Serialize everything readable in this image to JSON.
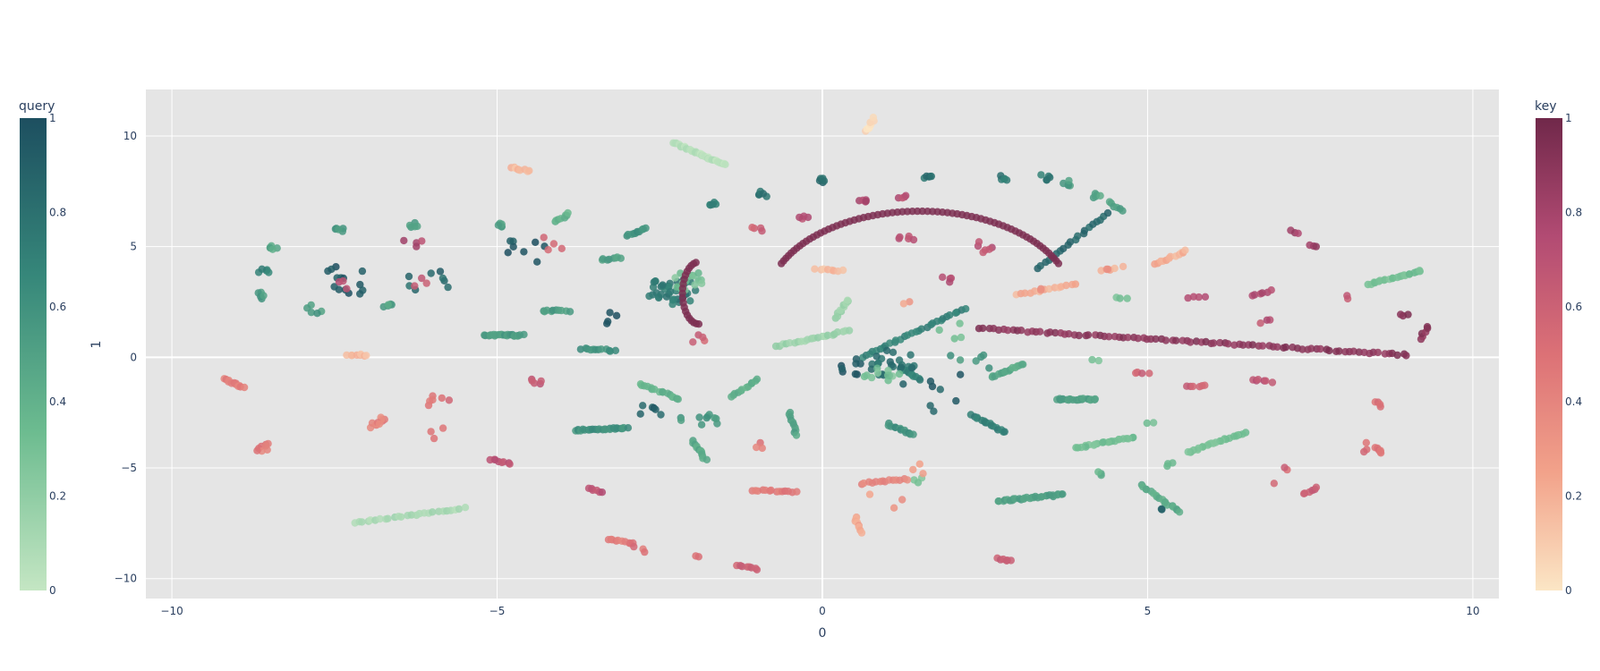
{
  "chart_data": {
    "type": "scatter",
    "title": "",
    "xlabel": "0",
    "ylabel": "1",
    "xlim": [
      -10.4,
      10.4
    ],
    "ylim": [
      -10.9,
      12.1
    ],
    "grid": true,
    "x_ticks": [
      -10,
      -5,
      0,
      5,
      10
    ],
    "y_ticks": [
      -10,
      -5,
      0,
      5,
      10
    ],
    "plot_bg": "#e5e5e5",
    "colorbars": [
      {
        "name": "query",
        "ticks": [
          "0",
          "0.2",
          "0.4",
          "0.6",
          "0.8",
          "1"
        ],
        "colors": [
          "#c4e6c3",
          "#6dbc90",
          "#36877a",
          "#1d4f60"
        ]
      },
      {
        "name": "key",
        "ticks": [
          "0",
          "0.2",
          "0.4",
          "0.6",
          "0.8",
          "1"
        ],
        "colors": [
          "#fbe6c5",
          "#f2a28a",
          "#dc7176",
          "#b24b73",
          "#70284a"
        ]
      }
    ],
    "series": [
      {
        "name": "query",
        "segments": [
          {
            "x0": -2.3,
            "y0": 9.7,
            "x1": -1.5,
            "y1": 8.7,
            "n": 30,
            "v": 0.05
          },
          {
            "x0": -7.2,
            "y0": -7.5,
            "x1": -5.5,
            "y1": -6.8,
            "n": 26,
            "v": 0.1
          },
          {
            "x0": -0.7,
            "y0": 0.5,
            "x1": 0.4,
            "y1": 1.2,
            "n": 22,
            "v": 0.15
          },
          {
            "x0": 0.2,
            "y0": 1.8,
            "x1": 0.4,
            "y1": 2.6,
            "n": 10,
            "v": 0.15
          },
          {
            "x0": 8.4,
            "y0": 3.3,
            "x1": 9.2,
            "y1": 3.9,
            "n": 22,
            "v": 0.3
          },
          {
            "x0": 6.5,
            "y0": -3.4,
            "x1": 5.6,
            "y1": -4.3,
            "n": 24,
            "v": 0.3
          },
          {
            "x0": 4.8,
            "y0": -3.6,
            "x1": 3.9,
            "y1": -4.1,
            "n": 22,
            "v": 0.3
          },
          {
            "x0": 4.9,
            "y0": -5.8,
            "x1": 5.5,
            "y1": -7.0,
            "n": 18,
            "v": 0.45
          },
          {
            "x0": 2.7,
            "y0": -6.5,
            "x1": 3.7,
            "y1": -6.2,
            "n": 30,
            "v": 0.5
          },
          {
            "x0": 3.6,
            "y0": -1.9,
            "x1": 4.2,
            "y1": -1.9,
            "n": 22,
            "v": 0.5
          },
          {
            "x0": 2.6,
            "y0": -0.9,
            "x1": 3.1,
            "y1": -0.3,
            "n": 16,
            "v": 0.45
          },
          {
            "x0": -5.2,
            "y0": 1.0,
            "x1": -4.6,
            "y1": 1.0,
            "n": 22,
            "v": 0.55
          },
          {
            "x0": -3.8,
            "y0": -3.3,
            "x1": -3.0,
            "y1": -3.2,
            "n": 26,
            "v": 0.6
          },
          {
            "x0": -2.8,
            "y0": -1.2,
            "x1": -2.2,
            "y1": -1.9,
            "n": 16,
            "v": 0.4
          },
          {
            "x0": -2.0,
            "y0": -3.8,
            "x1": -1.8,
            "y1": -4.6,
            "n": 12,
            "v": 0.45
          },
          {
            "x0": -1.4,
            "y0": -1.8,
            "x1": -1.0,
            "y1": -1.0,
            "n": 12,
            "v": 0.4
          },
          {
            "x0": -0.5,
            "y0": -2.5,
            "x1": -0.4,
            "y1": -3.5,
            "n": 10,
            "v": 0.5
          },
          {
            "x0": 0.6,
            "y0": 0.0,
            "x1": 2.2,
            "y1": 2.2,
            "n": 30,
            "v": 0.7
          },
          {
            "x0": 1.2,
            "y0": -0.5,
            "x1": 1.5,
            "y1": -1.0,
            "n": 12,
            "v": 0.7
          },
          {
            "x0": 1.0,
            "y0": -3.0,
            "x1": 1.4,
            "y1": -3.5,
            "n": 12,
            "v": 0.6
          },
          {
            "x0": 2.3,
            "y0": -2.6,
            "x1": 2.8,
            "y1": -3.4,
            "n": 16,
            "v": 0.7
          },
          {
            "x0": -4.3,
            "y0": 2.1,
            "x1": -3.9,
            "y1": 2.1,
            "n": 10,
            "v": 0.55
          },
          {
            "x0": -3.7,
            "y0": 0.4,
            "x1": -3.2,
            "y1": 0.3,
            "n": 12,
            "v": 0.6
          },
          {
            "x0": -3.4,
            "y0": 4.4,
            "x1": -3.1,
            "y1": 4.5,
            "n": 8,
            "v": 0.5
          },
          {
            "x0": -3.0,
            "y0": 5.5,
            "x1": -2.7,
            "y1": 5.8,
            "n": 10,
            "v": 0.6
          },
          {
            "x0": -4.1,
            "y0": 6.1,
            "x1": -3.9,
            "y1": 6.5,
            "n": 8,
            "v": 0.4
          },
          {
            "x0": 3.3,
            "y0": 4.0,
            "x1": 4.4,
            "y1": 6.5,
            "n": 20,
            "v": 0.85
          },
          {
            "x0": 4.4,
            "y0": 7.0,
            "x1": 4.6,
            "y1": 6.6,
            "n": 6,
            "v": 0.5
          }
        ],
        "clusters": [
          {
            "x": -2.3,
            "y": 3.0,
            "r": 0.4,
            "n": 40,
            "v": 0.75
          },
          {
            "x": -2.1,
            "y": 3.5,
            "r": 0.3,
            "n": 18,
            "v": 0.3
          },
          {
            "x": -1.9,
            "y": -2.9,
            "r": 0.3,
            "n": 10,
            "v": 0.55
          },
          {
            "x": -2.6,
            "y": -2.3,
            "r": 0.3,
            "n": 6,
            "v": 0.9
          },
          {
            "x": 1.1,
            "y": -0.3,
            "r": 0.4,
            "n": 24,
            "v": 0.8
          },
          {
            "x": 0.9,
            "y": -0.9,
            "r": 0.3,
            "n": 10,
            "v": 0.3
          },
          {
            "x": -8.6,
            "y": 3.9,
            "r": 0.1,
            "n": 5,
            "v": 0.7
          },
          {
            "x": -8.6,
            "y": 2.8,
            "r": 0.1,
            "n": 5,
            "v": 0.55
          },
          {
            "x": -8.4,
            "y": 5.0,
            "r": 0.1,
            "n": 5,
            "v": 0.45
          },
          {
            "x": -7.4,
            "y": 5.8,
            "r": 0.1,
            "n": 5,
            "v": 0.55
          },
          {
            "x": -6.3,
            "y": 6.0,
            "r": 0.1,
            "n": 5,
            "v": 0.5
          },
          {
            "x": -5.0,
            "y": 6.0,
            "r": 0.1,
            "n": 5,
            "v": 0.5
          },
          {
            "x": -7.3,
            "y": 3.6,
            "r": 0.5,
            "n": 14,
            "v": 0.95
          },
          {
            "x": -6.0,
            "y": 3.5,
            "r": 0.4,
            "n": 8,
            "v": 0.85
          },
          {
            "x": -6.7,
            "y": 2.3,
            "r": 0.1,
            "n": 5,
            "v": 0.5
          },
          {
            "x": -7.8,
            "y": 2.2,
            "r": 0.15,
            "n": 5,
            "v": 0.55
          },
          {
            "x": -1.7,
            "y": 7.0,
            "r": 0.1,
            "n": 5,
            "v": 0.7
          },
          {
            "x": -0.9,
            "y": 7.4,
            "r": 0.1,
            "n": 5,
            "v": 0.8
          },
          {
            "x": 0.0,
            "y": 8.0,
            "r": 0.1,
            "n": 5,
            "v": 0.85
          },
          {
            "x": 1.6,
            "y": 8.1,
            "r": 0.1,
            "n": 5,
            "v": 0.8
          },
          {
            "x": 2.8,
            "y": 8.1,
            "r": 0.1,
            "n": 5,
            "v": 0.75
          },
          {
            "x": 3.4,
            "y": 8.1,
            "r": 0.1,
            "n": 5,
            "v": 0.75
          },
          {
            "x": 3.8,
            "y": 7.9,
            "r": 0.1,
            "n": 5,
            "v": 0.55
          },
          {
            "x": 4.2,
            "y": 7.3,
            "r": 0.1,
            "n": 5,
            "v": 0.5
          },
          {
            "x": -4.5,
            "y": 4.9,
            "r": 0.4,
            "n": 8,
            "v": 0.95
          },
          {
            "x": -3.3,
            "y": 1.8,
            "r": 0.2,
            "n": 4,
            "v": 0.95
          },
          {
            "x": 0.5,
            "y": -0.3,
            "r": 0.3,
            "n": 8,
            "v": 0.95
          },
          {
            "x": 1.8,
            "y": -1.5,
            "r": 0.6,
            "n": 8,
            "v": 0.9
          },
          {
            "x": 2.2,
            "y": -0.3,
            "r": 0.4,
            "n": 6,
            "v": 0.55
          },
          {
            "x": 4.6,
            "y": 2.7,
            "r": 0.1,
            "n": 3,
            "v": 0.3
          },
          {
            "x": 4.3,
            "y": -5.3,
            "r": 0.1,
            "n": 3,
            "v": 0.4
          },
          {
            "x": 5.3,
            "y": -4.8,
            "r": 0.1,
            "n": 3,
            "v": 0.3
          },
          {
            "x": 1.5,
            "y": -5.6,
            "r": 0.1,
            "n": 3,
            "v": 0.3
          },
          {
            "x": 2.0,
            "y": 1.1,
            "r": 0.3,
            "n": 4,
            "v": 0.3
          },
          {
            "x": 4.2,
            "y": -0.1,
            "r": 0.1,
            "n": 2,
            "v": 0.3
          },
          {
            "x": 5.0,
            "y": -3.0,
            "r": 0.1,
            "n": 2,
            "v": 0.35
          },
          {
            "x": 5.3,
            "y": -6.9,
            "r": 0.1,
            "n": 2,
            "v": 0.9
          }
        ]
      },
      {
        "name": "key",
        "segments": [
          {
            "x0": 0.65,
            "y0": 10.2,
            "x1": 0.8,
            "y1": 10.8,
            "n": 8,
            "v": 0.05
          },
          {
            "x0": -4.8,
            "y0": 8.6,
            "x1": -4.5,
            "y1": 8.4,
            "n": 8,
            "v": 0.15
          },
          {
            "x0": 5.1,
            "y0": 4.2,
            "x1": 5.6,
            "y1": 4.8,
            "n": 12,
            "v": 0.2
          },
          {
            "x": 0,
            "x0": 3.0,
            "y0": 2.8,
            "x1": 3.9,
            "y1": 3.3,
            "n": 14,
            "v": 0.2
          },
          {
            "x0": 4.3,
            "y0": 3.9,
            "x1": 4.6,
            "y1": 4.1,
            "n": 4,
            "v": 0.2
          },
          {
            "x0": -0.1,
            "y0": 4.0,
            "x1": 0.3,
            "y1": 3.9,
            "n": 8,
            "v": 0.15
          },
          {
            "x0": -7.3,
            "y0": 0.1,
            "x1": -7.0,
            "y1": 0.1,
            "n": 8,
            "v": 0.15
          },
          {
            "x0": 2.4,
            "y0": 1.3,
            "x1": 9.0,
            "y1": 0.1,
            "n": 90,
            "v": 0.9
          },
          {
            "x0": -9.2,
            "y0": -1.0,
            "x1": -8.9,
            "y1": -1.4,
            "n": 12,
            "v": 0.45
          },
          {
            "x0": -1.1,
            "y0": -6.0,
            "x1": -0.4,
            "y1": -6.1,
            "n": 14,
            "v": 0.45
          },
          {
            "x0": 0.6,
            "y0": -5.7,
            "x1": 1.3,
            "y1": -5.5,
            "n": 14,
            "v": 0.4
          },
          {
            "x0": 0.5,
            "y0": -7.2,
            "x1": 0.6,
            "y1": -7.9,
            "n": 8,
            "v": 0.25
          },
          {
            "x0": -3.3,
            "y0": -8.2,
            "x1": -2.9,
            "y1": -8.4,
            "n": 10,
            "v": 0.45
          },
          {
            "x0": -1.3,
            "y0": -9.4,
            "x1": -1.0,
            "y1": -9.6,
            "n": 8,
            "v": 0.6
          },
          {
            "x0": 2.7,
            "y0": -9.1,
            "x1": 2.9,
            "y1": -9.2,
            "n": 6,
            "v": 0.6
          },
          {
            "x0": -5.1,
            "y0": -4.6,
            "x1": -4.8,
            "y1": -4.8,
            "n": 8,
            "v": 0.7
          },
          {
            "x0": -3.6,
            "y0": -5.9,
            "x1": -3.4,
            "y1": -6.1,
            "n": 6,
            "v": 0.7
          },
          {
            "x0": 7.4,
            "y0": -6.2,
            "x1": 7.6,
            "y1": -5.9,
            "n": 6,
            "v": 0.6
          },
          {
            "x0": 8.5,
            "y0": -4.1,
            "x1": 8.6,
            "y1": -4.3,
            "n": 6,
            "v": 0.5
          },
          {
            "x0": 8.5,
            "y0": -2.0,
            "x1": 8.6,
            "y1": -2.2,
            "n": 4,
            "v": 0.5
          },
          {
            "x0": 9.2,
            "y0": 0.8,
            "x1": 9.3,
            "y1": 1.4,
            "n": 6,
            "v": 0.9
          },
          {
            "x0": 6.6,
            "y0": -1.0,
            "x1": 6.9,
            "y1": -1.1,
            "n": 6,
            "v": 0.7
          },
          {
            "x0": 5.6,
            "y0": -1.3,
            "x1": 5.9,
            "y1": -1.3,
            "n": 6,
            "v": 0.6
          },
          {
            "x0": 4.8,
            "y0": -0.7,
            "x1": 5.0,
            "y1": -0.7,
            "n": 4,
            "v": 0.6
          },
          {
            "x0": 6.6,
            "y0": 2.8,
            "x1": 6.9,
            "y1": 3.0,
            "n": 6,
            "v": 0.75
          },
          {
            "x0": 7.2,
            "y0": 5.7,
            "x1": 7.3,
            "y1": 5.6,
            "n": 3,
            "v": 0.8
          },
          {
            "x0": 7.5,
            "y0": 5.1,
            "x1": 7.6,
            "y1": 5.0,
            "n": 3,
            "v": 0.85
          },
          {
            "x0": 5.6,
            "y0": 2.7,
            "x1": 5.9,
            "y1": 2.7,
            "n": 4,
            "v": 0.7
          },
          {
            "x0": 8.9,
            "y0": 1.9,
            "x1": 9.0,
            "y1": 1.9,
            "n": 3,
            "v": 0.9
          }
        ],
        "curves": [
          {
            "cx": 1.5,
            "cy": 2.5,
            "rx": 2.35,
            "ry": 4.1,
            "a0": 155,
            "a1": 25,
            "n": 70,
            "v": 0.95
          },
          {
            "cx": -1.9,
            "cy": 2.9,
            "rx": 0.25,
            "ry": 1.4,
            "a0": 100,
            "a1": 270,
            "n": 20,
            "v": 0.95
          }
        ],
        "clusters": [
          {
            "x": -8.6,
            "y": -4.1,
            "r": 0.15,
            "n": 8,
            "v": 0.45
          },
          {
            "x": -6.8,
            "y": -3.0,
            "r": 0.2,
            "n": 10,
            "v": 0.4
          },
          {
            "x": -5.9,
            "y": -2.0,
            "r": 0.2,
            "n": 6,
            "v": 0.5
          },
          {
            "x": -5.9,
            "y": -3.5,
            "r": 0.2,
            "n": 3,
            "v": 0.45
          },
          {
            "x": -4.4,
            "y": -1.1,
            "r": 0.1,
            "n": 5,
            "v": 0.65
          },
          {
            "x": -1.9,
            "y": 0.8,
            "r": 0.15,
            "n": 4,
            "v": 0.6
          },
          {
            "x": -1.0,
            "y": -4.0,
            "r": 0.1,
            "n": 3,
            "v": 0.45
          },
          {
            "x": -1.0,
            "y": 5.8,
            "r": 0.1,
            "n": 4,
            "v": 0.6
          },
          {
            "x": -0.3,
            "y": 6.3,
            "r": 0.1,
            "n": 4,
            "v": 0.7
          },
          {
            "x": 0.6,
            "y": 7.0,
            "r": 0.1,
            "n": 5,
            "v": 0.75
          },
          {
            "x": 1.2,
            "y": 7.3,
            "r": 0.1,
            "n": 4,
            "v": 0.7
          },
          {
            "x": 1.3,
            "y": 5.4,
            "r": 0.15,
            "n": 5,
            "v": 0.7
          },
          {
            "x": 1.9,
            "y": 3.5,
            "r": 0.1,
            "n": 4,
            "v": 0.75
          },
          {
            "x": 2.5,
            "y": 5.0,
            "r": 0.2,
            "n": 6,
            "v": 0.7
          },
          {
            "x": -6.2,
            "y": 5.2,
            "r": 0.25,
            "n": 4,
            "v": 0.75
          },
          {
            "x": -4.2,
            "y": 5.0,
            "r": 0.3,
            "n": 4,
            "v": 0.55
          },
          {
            "x": -7.4,
            "y": 3.2,
            "r": 0.3,
            "n": 3,
            "v": 0.7
          },
          {
            "x": -6.2,
            "y": 3.4,
            "r": 0.15,
            "n": 3,
            "v": 0.6
          },
          {
            "x": 8.3,
            "y": -4.0,
            "r": 0.25,
            "n": 3,
            "v": 0.5
          },
          {
            "x": 7.0,
            "y": -5.3,
            "r": 0.3,
            "n": 3,
            "v": 0.55
          },
          {
            "x": 8.0,
            "y": 2.7,
            "r": 0.1,
            "n": 2,
            "v": 0.6
          },
          {
            "x": 6.8,
            "y": 1.6,
            "r": 0.1,
            "n": 3,
            "v": 0.7
          },
          {
            "x": -2.8,
            "y": -8.5,
            "r": 0.2,
            "n": 3,
            "v": 0.5
          },
          {
            "x": -1.9,
            "y": -9.0,
            "r": 0.15,
            "n": 2,
            "v": 0.55
          },
          {
            "x": 1.4,
            "y": -5.0,
            "r": 0.3,
            "n": 3,
            "v": 0.3
          },
          {
            "x": 1.0,
            "y": -6.4,
            "r": 0.3,
            "n": 3,
            "v": 0.3
          },
          {
            "x": 4.3,
            "y": 4.0,
            "r": 0.1,
            "n": 2,
            "v": 0.3
          },
          {
            "x": 1.3,
            "y": 2.4,
            "r": 0.1,
            "n": 2,
            "v": 0.3
          },
          {
            "x": 3.4,
            "y": 3.1,
            "r": 0.1,
            "n": 2,
            "v": 0.35
          }
        ]
      }
    ]
  }
}
